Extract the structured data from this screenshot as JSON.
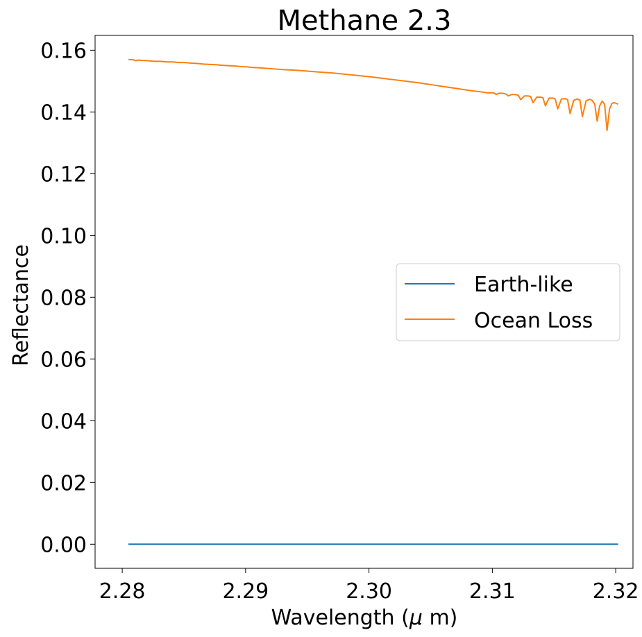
{
  "chart_data": {
    "type": "line",
    "title": "Methane 2.3",
    "xlabel_prefix": "Wavelength (",
    "xlabel_symbol": "μ",
    "xlabel_suffix": " m)",
    "ylabel": "Reflectance",
    "xlim": [
      2.2778,
      2.3214
    ],
    "ylim": [
      -0.0078,
      0.1648
    ],
    "xticks": [
      2.28,
      2.29,
      2.3,
      2.31,
      2.32
    ],
    "xtick_labels": [
      "2.28",
      "2.29",
      "2.30",
      "2.31",
      "2.32"
    ],
    "yticks": [
      0.0,
      0.02,
      0.04,
      0.06,
      0.08,
      0.1,
      0.12,
      0.14,
      0.16
    ],
    "ytick_labels": [
      "0.00",
      "0.02",
      "0.04",
      "0.06",
      "0.08",
      "0.10",
      "0.12",
      "0.14",
      "0.16"
    ],
    "grid": false,
    "legend_position": "center-right",
    "series": [
      {
        "name": "Earth-like",
        "color": "#1f77b4",
        "x": [
          2.2805,
          2.3202
        ],
        "y": [
          0.0,
          0.0
        ]
      },
      {
        "name": "Ocean Loss",
        "color": "#ff7f0e",
        "x": [
          2.2805,
          2.2809,
          2.2811,
          2.2813,
          2.2816,
          2.2821,
          2.2826,
          2.2831,
          2.2836,
          2.2841,
          2.2846,
          2.2851,
          2.2856,
          2.2861,
          2.2866,
          2.2871,
          2.2876,
          2.2881,
          2.2886,
          2.2891,
          2.2896,
          2.2901,
          2.2906,
          2.2911,
          2.2921,
          2.2931,
          2.2941,
          2.2951,
          2.2961,
          2.2971,
          2.2981,
          2.2991,
          2.3001,
          2.3011,
          2.3021,
          2.3031,
          2.3041,
          2.3051,
          2.3061,
          2.3071,
          2.3081,
          2.3091,
          2.3096,
          2.3101,
          2.3103,
          2.3106,
          2.3109,
          2.3111,
          2.3113,
          2.3116,
          2.3119,
          2.3121,
          2.3123,
          2.3126,
          2.3129,
          2.3131,
          2.3133,
          2.3136,
          2.3139,
          2.3141,
          2.3143,
          2.3146,
          2.3149,
          2.3151,
          2.3153,
          2.3156,
          2.3159,
          2.3161,
          2.3163,
          2.3166,
          2.3169,
          2.3171,
          2.3173,
          2.3176,
          2.3179,
          2.3181,
          2.3183,
          2.3185,
          2.3187,
          2.3189,
          2.3191,
          2.3193,
          2.3195,
          2.3197,
          2.3199,
          2.3202
        ],
        "y": [
          0.157,
          0.1569,
          0.1566,
          0.1568,
          0.1567,
          0.1566,
          0.1564,
          0.1564,
          0.1562,
          0.1562,
          0.156,
          0.156,
          0.1558,
          0.1557,
          0.1555,
          0.1554,
          0.1553,
          0.1551,
          0.155,
          0.1549,
          0.1547,
          0.1546,
          0.1544,
          0.1543,
          0.154,
          0.1537,
          0.1535,
          0.1532,
          0.1529,
          0.1526,
          0.1522,
          0.1518,
          0.1514,
          0.1509,
          0.1504,
          0.1499,
          0.1494,
          0.1488,
          0.1482,
          0.1476,
          0.147,
          0.1465,
          0.1462,
          0.1462,
          0.1457,
          0.1461,
          0.146,
          0.1458,
          0.1452,
          0.1457,
          0.1456,
          0.1454,
          0.144,
          0.1452,
          0.1452,
          0.145,
          0.143,
          0.1448,
          0.1448,
          0.1446,
          0.142,
          0.1445,
          0.1445,
          0.1442,
          0.141,
          0.1442,
          0.1443,
          0.144,
          0.1395,
          0.1438,
          0.1442,
          0.1438,
          0.1385,
          0.1436,
          0.1441,
          0.1437,
          0.1425,
          0.137,
          0.142,
          0.1435,
          0.1425,
          0.134,
          0.141,
          0.1428,
          0.143,
          0.1425
        ]
      }
    ]
  }
}
